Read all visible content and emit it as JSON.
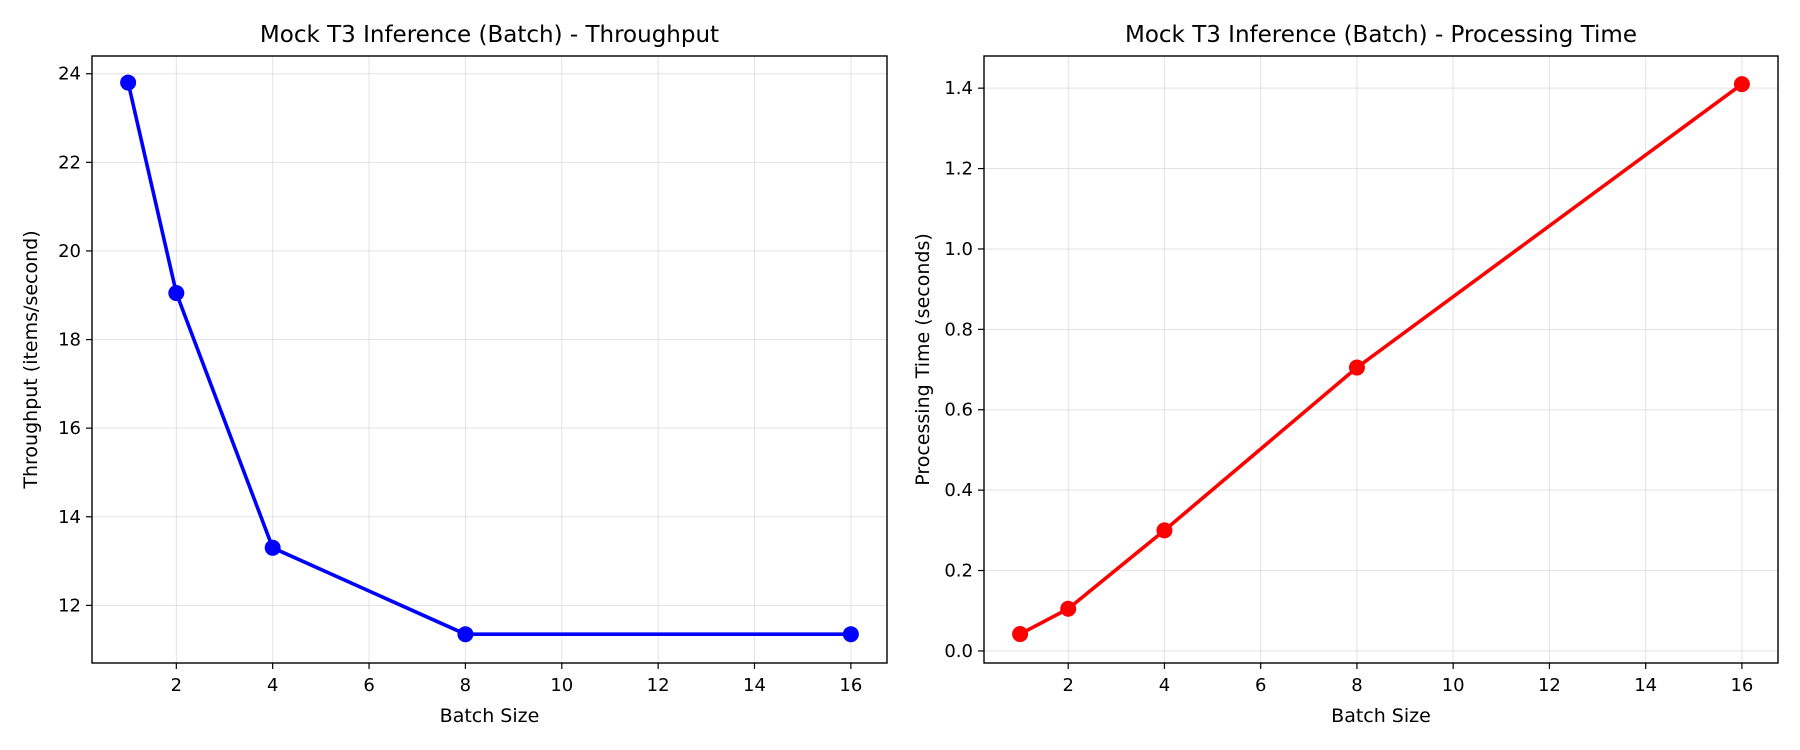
{
  "chart_data": [
    {
      "type": "line",
      "title": "Mock T3 Inference (Batch) - Throughput",
      "xlabel": "Batch Size",
      "ylabel": "Throughput (items/second)",
      "x": [
        1,
        2,
        4,
        8,
        16
      ],
      "series": [
        {
          "color": "#0000ff",
          "values": [
            23.8,
            19.05,
            13.3,
            11.35,
            11.35
          ]
        }
      ],
      "xlim": [
        0.25,
        16.75
      ],
      "ylim": [
        10.7,
        24.4
      ],
      "xticks": [
        2,
        4,
        6,
        8,
        10,
        12,
        14,
        16
      ],
      "yticks": [
        12,
        14,
        16,
        18,
        20,
        22,
        24
      ],
      "tick_decimals": {
        "x": 0,
        "y": 0
      },
      "grid": true,
      "legend": "none",
      "markers": true
    },
    {
      "type": "line",
      "title": "Mock T3 Inference (Batch) - Processing Time",
      "xlabel": "Batch Size",
      "ylabel": "Processing Time (seconds)",
      "x": [
        1,
        2,
        4,
        8,
        16
      ],
      "series": [
        {
          "color": "#ff0000",
          "values": [
            0.042,
            0.105,
            0.3,
            0.705,
            1.41
          ]
        }
      ],
      "xlim": [
        0.25,
        16.75
      ],
      "ylim": [
        -0.03,
        1.48
      ],
      "xticks": [
        2,
        4,
        6,
        8,
        10,
        12,
        14,
        16
      ],
      "yticks": [
        0.0,
        0.2,
        0.4,
        0.6,
        0.8,
        1.0,
        1.2,
        1.4
      ],
      "tick_decimals": {
        "x": 0,
        "y": 1
      },
      "grid": true,
      "legend": "none",
      "markers": true
    }
  ]
}
